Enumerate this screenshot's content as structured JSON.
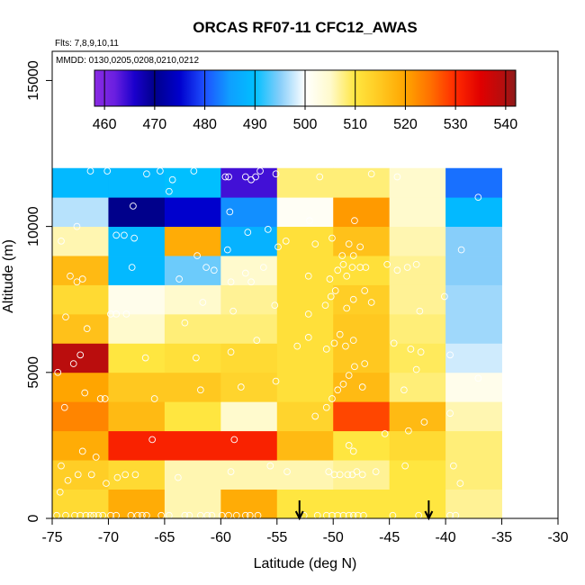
{
  "chart_data": {
    "type": "heatmap",
    "title": "ORCAS RF07-11 CFC12_AWAS",
    "flights_note": "Flts: 7,8,9,10,11",
    "dates_note": "MMDD: 0130,0205,0208,0210,0212",
    "xlabel": "Latitude (deg N)",
    "ylabel": "Altitude (m)",
    "xlim": [
      -75,
      -30
    ],
    "ylim": [
      0,
      16000
    ],
    "x_ticks": [
      -75,
      -70,
      -65,
      -60,
      -55,
      -50,
      -45,
      -40,
      -35,
      -30
    ],
    "x_tick_labels": [
      "-75",
      "-70",
      "-65",
      "-60",
      "-55",
      "-50",
      "-45",
      "-40",
      "-35",
      "-30"
    ],
    "y_ticks": [
      0,
      5000,
      10000,
      15000
    ],
    "y_tick_labels": [
      "0",
      "5000",
      "10000",
      "15000"
    ],
    "colorbar": {
      "min": 458,
      "max": 542,
      "ticks": [
        460,
        470,
        480,
        490,
        500,
        510,
        520,
        530,
        540
      ],
      "tick_labels": [
        "460",
        "470",
        "480",
        "490",
        "500",
        "510",
        "520",
        "530",
        "540"
      ],
      "stops": [
        {
          "v": 458,
          "c": "#8a2be2"
        },
        {
          "v": 462,
          "c": "#6a1fe0"
        },
        {
          "v": 466,
          "c": "#1a00cc"
        },
        {
          "v": 470,
          "c": "#00008b"
        },
        {
          "v": 475,
          "c": "#0000cd"
        },
        {
          "v": 480,
          "c": "#1e50ff"
        },
        {
          "v": 485,
          "c": "#0f9fff"
        },
        {
          "v": 490,
          "c": "#00bfff"
        },
        {
          "v": 495,
          "c": "#87cefa"
        },
        {
          "v": 500,
          "c": "#ffffff"
        },
        {
          "v": 505,
          "c": "#fffacd"
        },
        {
          "v": 510,
          "c": "#ffe640"
        },
        {
          "v": 515,
          "c": "#ffc820"
        },
        {
          "v": 520,
          "c": "#ffa500"
        },
        {
          "v": 525,
          "c": "#ff7000"
        },
        {
          "v": 530,
          "c": "#ff2a00"
        },
        {
          "v": 535,
          "c": "#e00000"
        },
        {
          "v": 540,
          "c": "#b01010"
        },
        {
          "v": 542,
          "c": "#8b1a1a"
        }
      ]
    },
    "lat_bins": [
      -75,
      -70,
      -65,
      -60,
      -55,
      -50,
      -45,
      -40,
      -35
    ],
    "alt_bins": [
      0,
      1000,
      2000,
      3000,
      4000,
      5000,
      6000,
      7000,
      8000,
      9000,
      10000,
      11000,
      12000
    ],
    "cells": [
      [
        512,
        519,
        506,
        519,
        510,
        510,
        510,
        507
      ],
      [
        514,
        512,
        506,
        506,
        506,
        507,
        510,
        508
      ],
      [
        519,
        531,
        531,
        531,
        517,
        510,
        512,
        508
      ],
      [
        523,
        517,
        510,
        505,
        513,
        528,
        517,
        506
      ],
      [
        520,
        515,
        515,
        513,
        511,
        517,
        508,
        502
      ],
      [
        539,
        510,
        511,
        512,
        511,
        515,
        509,
        498
      ],
      [
        516,
        505,
        508,
        508,
        511,
        515,
        508,
        496
      ],
      [
        512,
        502,
        505,
        507,
        511,
        514,
        507,
        496
      ],
      [
        517,
        489,
        494,
        505,
        511,
        511,
        507,
        495
      ],
      [
        506,
        489,
        519,
        488,
        511,
        516,
        506,
        495
      ],
      [
        497,
        470,
        475,
        484,
        501,
        521,
        505,
        489
      ],
      [
        489,
        489,
        490,
        464,
        508,
        508,
        505,
        482
      ]
    ],
    "arrows_at_lat": [
      -53,
      -41.5
    ],
    "samples": [
      [
        -74.6,
        100
      ],
      [
        -73.8,
        100
      ],
      [
        -73,
        100
      ],
      [
        -72.5,
        100
      ],
      [
        -72,
        100
      ],
      [
        -71.6,
        100
      ],
      [
        -71.3,
        100
      ],
      [
        -70.9,
        100
      ],
      [
        -70.5,
        100
      ],
      [
        -69.8,
        100
      ],
      [
        -69.3,
        100
      ],
      [
        -68,
        100
      ],
      [
        -67.4,
        100
      ],
      [
        -67,
        100
      ],
      [
        -66.6,
        100
      ],
      [
        -65.3,
        100
      ],
      [
        -64.6,
        100
      ],
      [
        -63.2,
        100
      ],
      [
        -62.8,
        100
      ],
      [
        -61.8,
        100
      ],
      [
        -61.2,
        100
      ],
      [
        -60.8,
        100
      ],
      [
        -59.9,
        100
      ],
      [
        -59.3,
        100
      ],
      [
        -58.6,
        100
      ],
      [
        -57.8,
        100
      ],
      [
        -57.4,
        100
      ],
      [
        -56.7,
        100
      ],
      [
        -52.6,
        100
      ],
      [
        -51.4,
        100
      ],
      [
        -50.6,
        100
      ],
      [
        -50.1,
        100
      ],
      [
        -49.6,
        100
      ],
      [
        -49.1,
        100
      ],
      [
        -48.6,
        100
      ],
      [
        -48.2,
        100
      ],
      [
        -47.8,
        100
      ],
      [
        -47.3,
        100
      ],
      [
        -44.7,
        100
      ],
      [
        -42.4,
        100
      ],
      [
        -39.6,
        100
      ],
      [
        -39.1,
        100
      ],
      [
        -74.3,
        900
      ],
      [
        -73.6,
        1300
      ],
      [
        -72.7,
        1500
      ],
      [
        -71.5,
        1500
      ],
      [
        -70.2,
        1200
      ],
      [
        -69.2,
        1400
      ],
      [
        -68.5,
        1500
      ],
      [
        -67.6,
        1500
      ],
      [
        -63.8,
        1400
      ],
      [
        -59.1,
        1600
      ],
      [
        -55.6,
        1800
      ],
      [
        -54.1,
        1600
      ],
      [
        -50.4,
        1600
      ],
      [
        -49.9,
        1500
      ],
      [
        -49.4,
        1500
      ],
      [
        -48.7,
        1500
      ],
      [
        -48.3,
        1500
      ],
      [
        -47.9,
        1600
      ],
      [
        -47.4,
        1500
      ],
      [
        -46.2,
        1600
      ],
      [
        -43.6,
        1800
      ],
      [
        -39.3,
        1800
      ],
      [
        -38.7,
        1200
      ],
      [
        -74.2,
        1800
      ],
      [
        -72.3,
        2300
      ],
      [
        -71.1,
        2100
      ],
      [
        -66.1,
        2700
      ],
      [
        -58.8,
        2700
      ],
      [
        -48.6,
        2500
      ],
      [
        -48.2,
        2300
      ],
      [
        -45.4,
        2900
      ],
      [
        -43.3,
        3000
      ],
      [
        -41.9,
        3300
      ],
      [
        -39.6,
        3600
      ],
      [
        -73.9,
        3800
      ],
      [
        -70.7,
        4100
      ],
      [
        -70.3,
        4100
      ],
      [
        -65.9,
        4100
      ],
      [
        -61.8,
        4400
      ],
      [
        -58.2,
        4500
      ],
      [
        -55.1,
        4700
      ],
      [
        -51.6,
        3500
      ],
      [
        -50.6,
        3800
      ],
      [
        -50.1,
        4100
      ],
      [
        -49.6,
        4400
      ],
      [
        -49.1,
        4600
      ],
      [
        -48.6,
        4900
      ],
      [
        -48.1,
        5200
      ],
      [
        -47.4,
        4500
      ],
      [
        -43.7,
        4400
      ],
      [
        -42.6,
        5100
      ],
      [
        -37.1,
        4800
      ],
      [
        -73.1,
        5300
      ],
      [
        -72.5,
        5600
      ],
      [
        -72.1,
        4300
      ],
      [
        -74.5,
        5000
      ],
      [
        -66.7,
        5500
      ],
      [
        -62.2,
        5500
      ],
      [
        -59.1,
        5700
      ],
      [
        -56.8,
        6100
      ],
      [
        -53.2,
        5900
      ],
      [
        -52.2,
        6200
      ],
      [
        -50.6,
        5800
      ],
      [
        -49.9,
        6000
      ],
      [
        -49.4,
        6300
      ],
      [
        -48.9,
        5900
      ],
      [
        -48.2,
        6100
      ],
      [
        -47.2,
        5300
      ],
      [
        -44.6,
        6000
      ],
      [
        -43.1,
        5800
      ],
      [
        -42.2,
        5700
      ],
      [
        -39.6,
        5600
      ],
      [
        -73.8,
        6900
      ],
      [
        -71.9,
        6500
      ],
      [
        -69.3,
        7000
      ],
      [
        -69.8,
        7000
      ],
      [
        -68.4,
        7000
      ],
      [
        -63.2,
        6700
      ],
      [
        -61.6,
        7400
      ],
      [
        -58.9,
        7100
      ],
      [
        -55.2,
        7300
      ],
      [
        -52.2,
        7000
      ],
      [
        -50.7,
        7300
      ],
      [
        -50.2,
        7600
      ],
      [
        -49.8,
        7800
      ],
      [
        -48.8,
        7200
      ],
      [
        -48.2,
        7500
      ],
      [
        -47.2,
        7800
      ],
      [
        -46.6,
        7400
      ],
      [
        -42.3,
        7100
      ],
      [
        -40.1,
        7600
      ],
      [
        -73.4,
        8300
      ],
      [
        -72.8,
        8100
      ],
      [
        -72.3,
        8200
      ],
      [
        -67.9,
        8600
      ],
      [
        -63.7,
        8200
      ],
      [
        -61.3,
        8600
      ],
      [
        -60.6,
        8500
      ],
      [
        -59.1,
        8100
      ],
      [
        -57.8,
        8400
      ],
      [
        -57.3,
        8100
      ],
      [
        -56.2,
        8600
      ],
      [
        -52.2,
        8300
      ],
      [
        -50.3,
        8200
      ],
      [
        -49.6,
        8500
      ],
      [
        -49.1,
        8700
      ],
      [
        -48.8,
        8300
      ],
      [
        -48.3,
        8600
      ],
      [
        -47.6,
        8600
      ],
      [
        -47.1,
        8600
      ],
      [
        -45.2,
        8700
      ],
      [
        -44.3,
        8500
      ],
      [
        -43.4,
        8600
      ],
      [
        -42.6,
        8700
      ],
      [
        -49.2,
        9000
      ],
      [
        -48.2,
        9000
      ],
      [
        -74.2,
        9500
      ],
      [
        -69.3,
        9700
      ],
      [
        -68.6,
        9700
      ],
      [
        -67.7,
        9600
      ],
      [
        -62.1,
        9000
      ],
      [
        -59.4,
        9200
      ],
      [
        -57.6,
        9800
      ],
      [
        -55.8,
        9900
      ],
      [
        -54.9,
        9300
      ],
      [
        -54.2,
        9500
      ],
      [
        -51.6,
        9400
      ],
      [
        -50.1,
        9600
      ],
      [
        -48.6,
        9400
      ],
      [
        -47.6,
        9300
      ],
      [
        -38.6,
        9200
      ],
      [
        -72.8,
        10000
      ],
      [
        -67.8,
        10700
      ],
      [
        -59.2,
        10500
      ],
      [
        -52.1,
        10200
      ],
      [
        -48.1,
        10200
      ],
      [
        -71.6,
        11900
      ],
      [
        -70.1,
        11900
      ],
      [
        -66.6,
        11800
      ],
      [
        -65.4,
        11900
      ],
      [
        -64.6,
        11200
      ],
      [
        -64.3,
        11600
      ],
      [
        -62.4,
        11900
      ],
      [
        -59.6,
        11700
      ],
      [
        -59.3,
        11700
      ],
      [
        -57.8,
        11700
      ],
      [
        -57.3,
        11600
      ],
      [
        -56.9,
        11700
      ],
      [
        -56.5,
        11900
      ],
      [
        -55.1,
        11800
      ],
      [
        -51.2,
        11700
      ],
      [
        -46.6,
        11800
      ],
      [
        -44.3,
        11700
      ],
      [
        -37.1,
        11000
      ]
    ]
  }
}
